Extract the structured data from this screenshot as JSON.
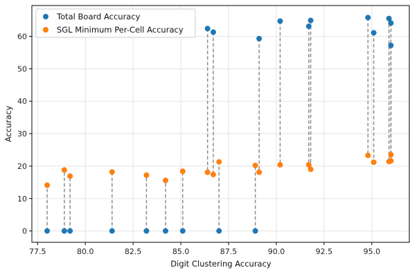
{
  "chart_data": {
    "type": "scatter",
    "xlabel": "Digit Clustering Accuracy",
    "ylabel": "Accuracy",
    "xlim": [
      77.2,
      97.0
    ],
    "ylim": [
      -3.5,
      69.5
    ],
    "xticks": [
      "77.5",
      "80.0",
      "82.5",
      "85.0",
      "87.5",
      "90.0",
      "92.5",
      "95.0"
    ],
    "yticks": [
      "0",
      "10",
      "20",
      "30",
      "40",
      "50",
      "60"
    ],
    "grid": true,
    "legend_position": "top-left",
    "connectors": "dashed vertical lines connect the two accuracies at each x",
    "series": [
      {
        "name": "Total Board Accuracy",
        "color": "#1f77b4",
        "points": [
          [
            78.0,
            0.0
          ],
          [
            78.9,
            0.0
          ],
          [
            79.2,
            0.0
          ],
          [
            81.4,
            0.0
          ],
          [
            83.2,
            0.0
          ],
          [
            84.2,
            0.0
          ],
          [
            85.1,
            0.0
          ],
          [
            86.4,
            62.4
          ],
          [
            86.7,
            61.3
          ],
          [
            87.0,
            0.0
          ],
          [
            88.9,
            0.0
          ],
          [
            89.1,
            59.3
          ],
          [
            90.2,
            64.7
          ],
          [
            91.7,
            63.1
          ],
          [
            91.8,
            64.9
          ],
          [
            94.8,
            65.8
          ],
          [
            95.1,
            61.1
          ],
          [
            95.9,
            65.5
          ],
          [
            96.0,
            57.2
          ],
          [
            96.0,
            64.1
          ]
        ]
      },
      {
        "name": "SGL Minimum Per-Cell Accuracy",
        "color": "#ff7f0e",
        "points": [
          [
            78.0,
            14.1
          ],
          [
            78.9,
            18.8
          ],
          [
            79.2,
            16.9
          ],
          [
            81.4,
            18.2
          ],
          [
            83.2,
            17.2
          ],
          [
            84.2,
            15.6
          ],
          [
            85.1,
            18.4
          ],
          [
            86.4,
            18.1
          ],
          [
            86.7,
            17.4
          ],
          [
            87.0,
            21.3
          ],
          [
            88.9,
            20.2
          ],
          [
            89.1,
            18.1
          ],
          [
            90.2,
            20.4
          ],
          [
            91.7,
            20.4
          ],
          [
            91.8,
            19.0
          ],
          [
            94.8,
            23.3
          ],
          [
            95.1,
            21.2
          ],
          [
            95.9,
            21.4
          ],
          [
            96.0,
            21.6
          ],
          [
            96.0,
            23.5
          ]
        ]
      }
    ]
  }
}
